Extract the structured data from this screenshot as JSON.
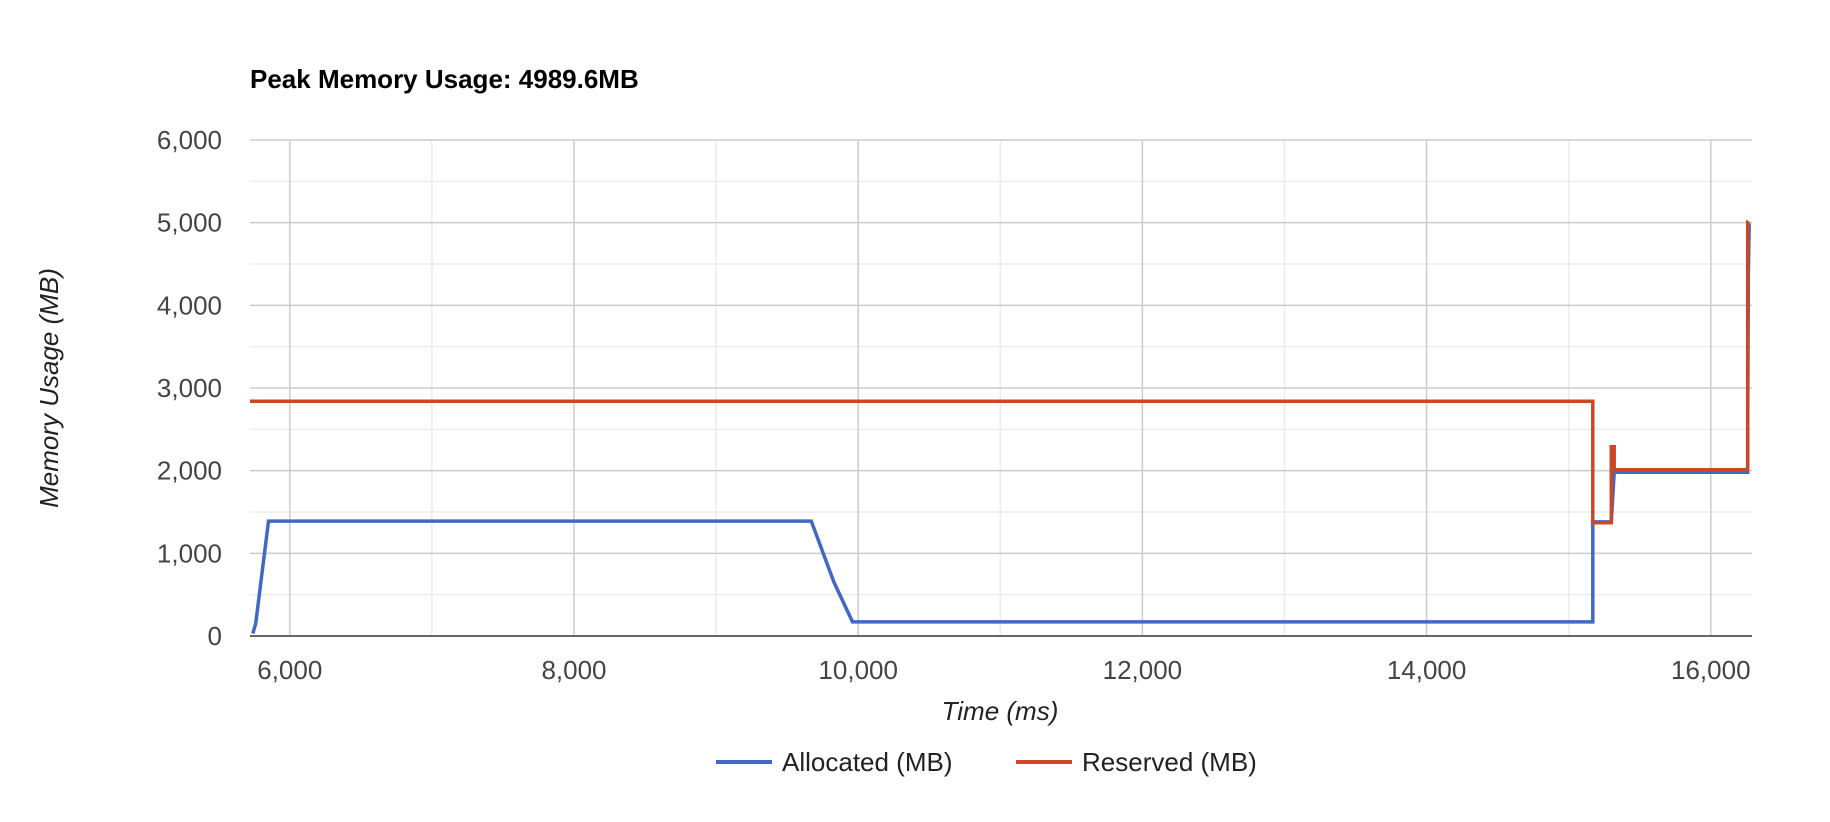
{
  "chart_data": {
    "type": "line",
    "title": "Peak Memory Usage: 4989.6MB",
    "xlabel": "Time (ms)",
    "ylabel": "Memory Usage (MB)",
    "xlim": [
      5720,
      16290
    ],
    "ylim": [
      0,
      6000
    ],
    "xticks": [
      6000,
      8000,
      10000,
      12000,
      14000,
      16000
    ],
    "xtick_labels": [
      "6,000",
      "8,000",
      "10,000",
      "12,000",
      "14,000",
      "16,000"
    ],
    "yticks": [
      0,
      1000,
      2000,
      3000,
      4000,
      5000,
      6000
    ],
    "ytick_labels": [
      "0",
      "1,000",
      "2,000",
      "3,000",
      "4,000",
      "5,000",
      "6,000"
    ],
    "grid": true,
    "legend_position": "bottom",
    "series": [
      {
        "name": "Allocated (MB)",
        "color": "#4169c4",
        "x": [
          5740,
          5760,
          5850,
          9670,
          9830,
          9960,
          15170,
          15170,
          15300,
          15320,
          16260,
          16260,
          16265,
          16270
        ],
        "y": [
          30,
          150,
          1390,
          1390,
          650,
          170,
          170,
          1380,
          1380,
          1980,
          1980,
          2600,
          4400,
          4989.6
        ]
      },
      {
        "name": "Reserved (MB)",
        "color": "#cc4726",
        "x": [
          5720,
          15170,
          15170,
          15300,
          15300,
          15320,
          15320,
          16260,
          16260,
          16270
        ],
        "y": [
          2840,
          2840,
          1370,
          1370,
          2290,
          2290,
          2010,
          2010,
          5000,
          4989.6
        ]
      }
    ]
  }
}
